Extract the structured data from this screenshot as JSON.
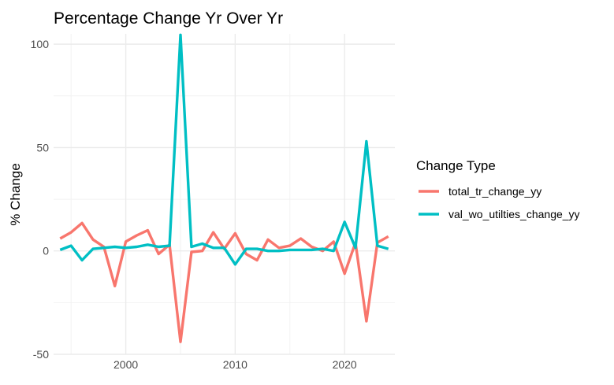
{
  "chart_data": {
    "type": "line",
    "title": "Percentage Change Yr Over Yr",
    "xlabel": "",
    "ylabel": "% Change",
    "xlim": [
      1993.4,
      2024.6
    ],
    "ylim": [
      -50,
      105
    ],
    "x_ticks": [
      2000,
      2010,
      2020
    ],
    "y_ticks": [
      -50,
      0,
      50,
      100
    ],
    "grid": true,
    "legend": {
      "title": "Change Type",
      "position": "right"
    },
    "series": [
      {
        "name": "total_tr_change_yy",
        "color": "#F8766D",
        "x": [
          1994,
          1995,
          1996,
          1997,
          1998,
          1999,
          2000,
          2001,
          2002,
          2003,
          2004,
          2005,
          2006,
          2007,
          2008,
          2009,
          2010,
          2011,
          2012,
          2013,
          2014,
          2015,
          2016,
          2017,
          2018,
          2019,
          2020,
          2021,
          2022,
          2023,
          2024
        ],
        "values": [
          6,
          9,
          13.5,
          5.5,
          2,
          -17,
          4.5,
          7.5,
          10,
          -1.5,
          3,
          -44,
          -0.5,
          0,
          9,
          1,
          8.5,
          -1.5,
          -4.5,
          5.5,
          1.5,
          2.5,
          6,
          2,
          0,
          4.5,
          -11,
          4,
          -34,
          4,
          7
        ]
      },
      {
        "name": "val_wo_utilties_change_yy",
        "color": "#00BFC4",
        "x": [
          1994,
          1995,
          1996,
          1997,
          1998,
          1999,
          2000,
          2001,
          2002,
          2003,
          2004,
          2005,
          2006,
          2007,
          2008,
          2009,
          2010,
          2011,
          2012,
          2013,
          2014,
          2015,
          2016,
          2017,
          2018,
          2019,
          2020,
          2021,
          2022,
          2023,
          2024
        ],
        "values": [
          0.5,
          2.5,
          -4.5,
          1,
          1.5,
          2,
          1.5,
          2,
          3,
          2,
          2.5,
          104.5,
          2,
          3.5,
          1.5,
          1.5,
          -6.5,
          1,
          1,
          0,
          0,
          0.5,
          0.5,
          0.5,
          1,
          0,
          14,
          1.5,
          53,
          2.5,
          1
        ]
      }
    ]
  }
}
